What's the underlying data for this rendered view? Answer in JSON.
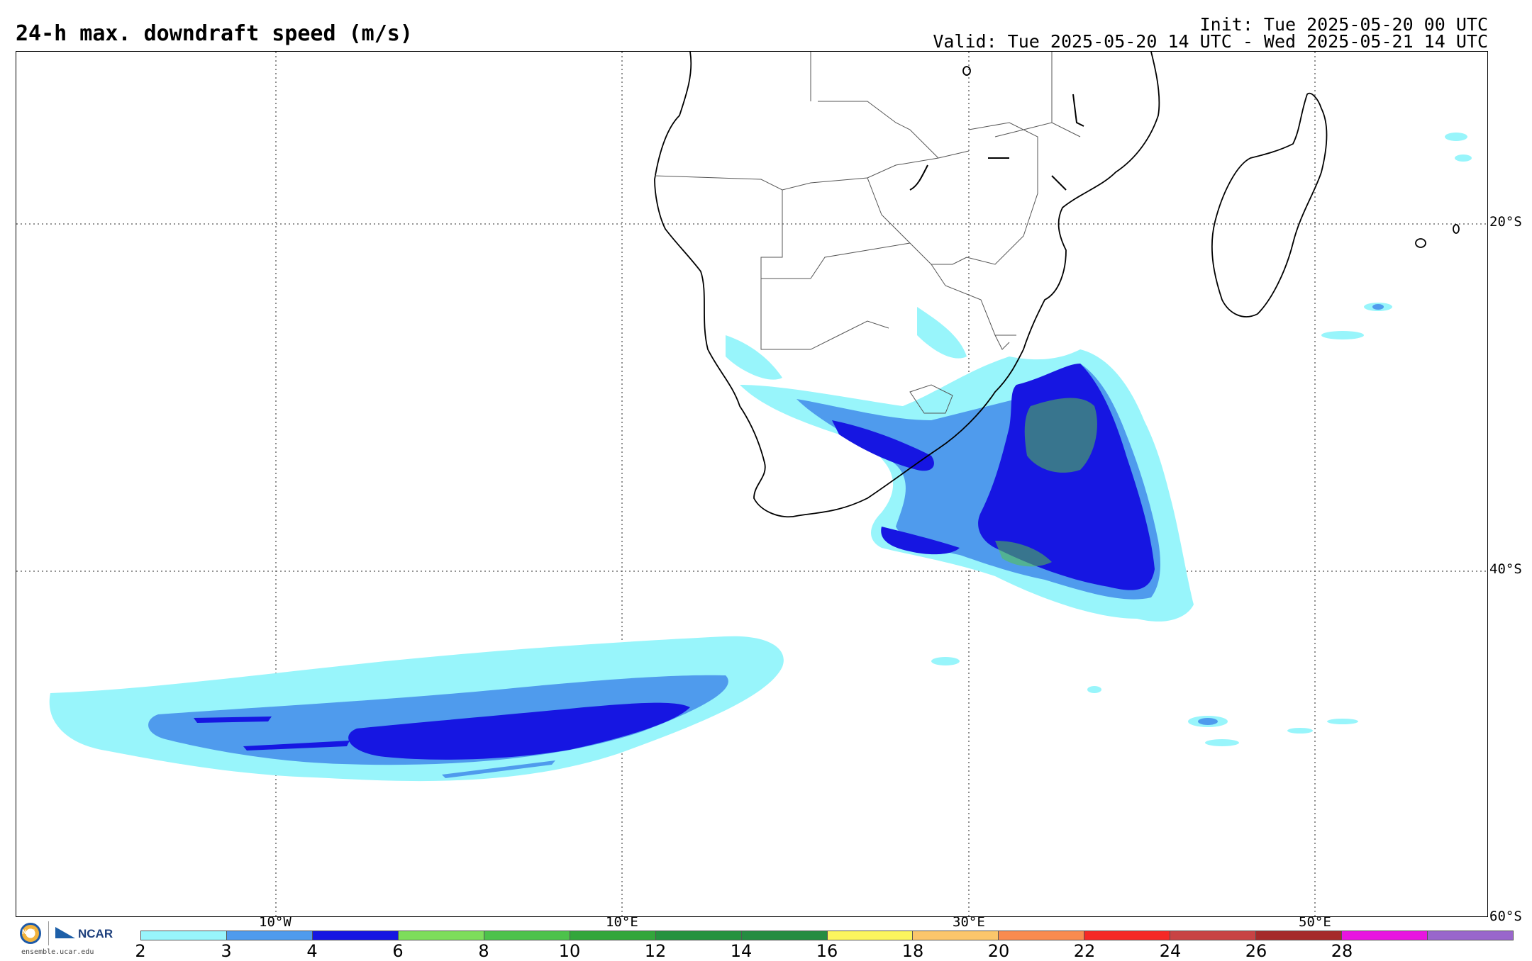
{
  "header": {
    "title": "24-h max. downdraft speed (m/s)",
    "init": "Init: Tue 2025-05-20 00 UTC",
    "valid": "Valid: Tue 2025-05-20 14 UTC - Wed 2025-05-21 14 UTC"
  },
  "map": {
    "lat_labels": [
      "20°S",
      "40°S",
      "60°S"
    ],
    "lon_labels": [
      "10°W",
      "10°E",
      "30°E",
      "50°E"
    ],
    "gridlines": "dotted"
  },
  "colorbar": {
    "ticks": [
      "2",
      "3",
      "4",
      "6",
      "8",
      "10",
      "12",
      "14",
      "16",
      "18",
      "20",
      "22",
      "24",
      "26",
      "28"
    ],
    "colors": [
      "#98f5fb",
      "#4f9bed",
      "#1616e2",
      "#7ddd5b",
      "#4dc24b",
      "#33a63b",
      "#25923f",
      "#258c41",
      "#fbf55e",
      "#fbc66b",
      "#f98b4f",
      "#f52926",
      "#c84344",
      "#a52a2a",
      "#e814e0",
      "#9966cc"
    ]
  },
  "logos": {
    "nsf": "NSF",
    "ncar": "NCAR",
    "url": "ensemble.ucar.edu"
  },
  "colors": {
    "light_cyan": "#98f5fb",
    "mid_blue": "#4f9bed",
    "dark_blue": "#1616e2",
    "green": "#55c548"
  }
}
